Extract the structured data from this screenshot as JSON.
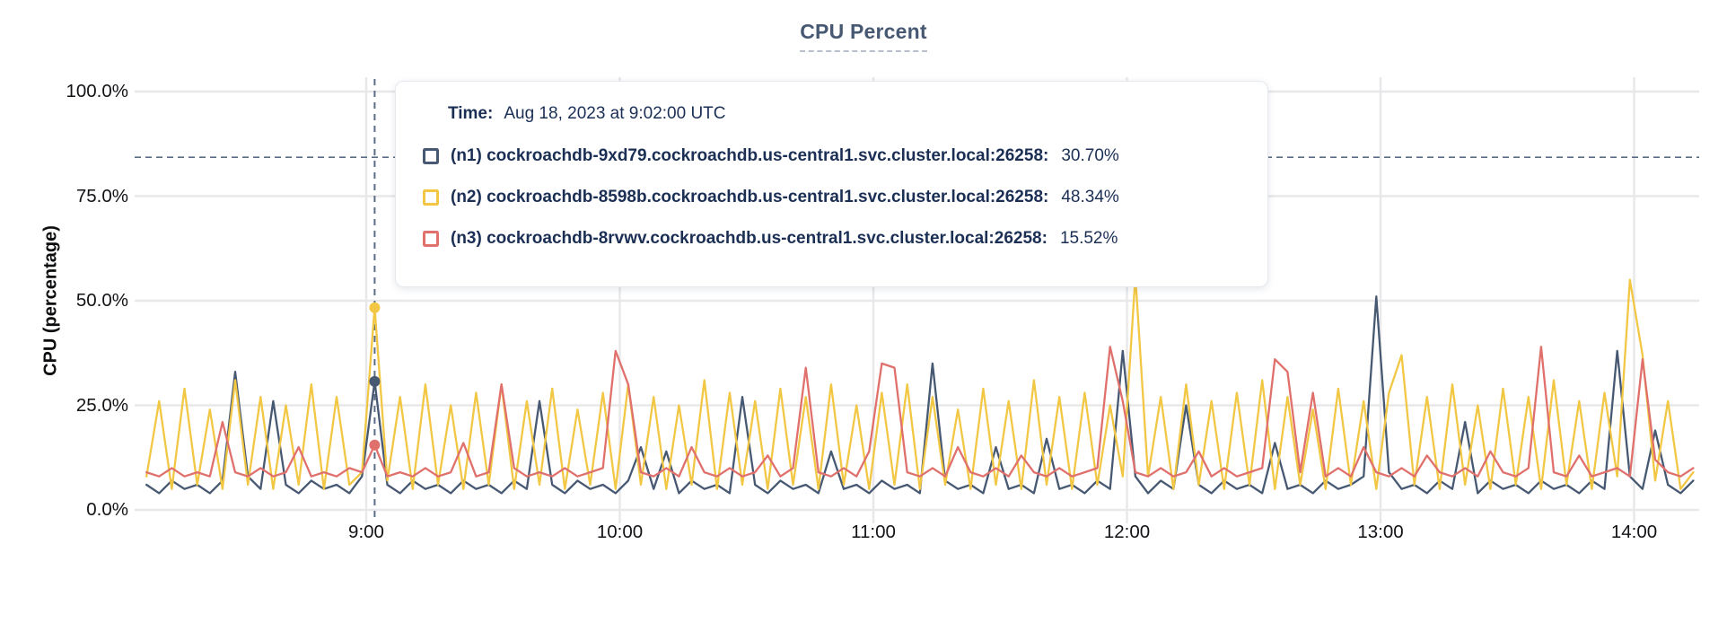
{
  "colors": {
    "accent": "#475872",
    "grid": "#e8e8ea",
    "dashed_guides": "#5b6d84",
    "axis_text": "#121316",
    "tooltip_text": "#1b2f55"
  },
  "tooltip": {
    "time_label": "Time:",
    "time_value": "Aug 18, 2023 at 9:02:00 UTC",
    "rows": [
      {
        "label": "(n1) cockroachdb-9xd79.cockroachdb.us-central1.svc.cluster.local:26258:",
        "value": "30.70%",
        "color": "#475872"
      },
      {
        "label": "(n2) cockroachdb-8598b.cockroachdb.us-central1.svc.cluster.local:26258:",
        "value": "48.34%",
        "color": "#f2c744"
      },
      {
        "label": "(n3) cockroachdb-8rvwv.cockroachdb.us-central1.svc.cluster.local:26258:",
        "value": "15.52%",
        "color": "#e0706c"
      }
    ]
  },
  "chart_data": {
    "type": "line",
    "title": "CPU Percent",
    "xlabel": "",
    "ylabel": "CPU (percentage)",
    "ylim": [
      0,
      100
    ],
    "grid": true,
    "legend_position": "tooltip-overlay",
    "y_ticks": [
      {
        "value": 0,
        "label": "0.0%"
      },
      {
        "value": 25,
        "label": "25.0%"
      },
      {
        "value": 50,
        "label": "50.0%"
      },
      {
        "value": 75,
        "label": "75.0%"
      },
      {
        "value": 100,
        "label": "100.0%"
      }
    ],
    "x_ticks": [
      {
        "minutes": 540,
        "label": "9:00"
      },
      {
        "minutes": 600,
        "label": "10:00"
      },
      {
        "minutes": 660,
        "label": "11:00"
      },
      {
        "minutes": 720,
        "label": "12:00"
      },
      {
        "minutes": 780,
        "label": "13:00"
      },
      {
        "minutes": 840,
        "label": "14:00"
      }
    ],
    "x_start_minutes": 488,
    "x_step_minutes": 3,
    "threshold_value": 84.3,
    "hover": {
      "minutes": 542,
      "time_text": "Aug 18, 2023 at 9:02:00 UTC",
      "points": [
        {
          "series": "n1",
          "value": 30.7
        },
        {
          "series": "n2",
          "value": 48.34
        },
        {
          "series": "n3",
          "value": 15.52
        }
      ]
    },
    "series": [
      {
        "id": "n1",
        "name": "(n1) cockroachdb-9xd79.cockroachdb.us-central1.svc.cluster.local:26258",
        "color": "#475872",
        "values": [
          6,
          4,
          7,
          5,
          6,
          4,
          7,
          33,
          8,
          5,
          26,
          6,
          4,
          7,
          5,
          6,
          4,
          8,
          30.7,
          6,
          4,
          7,
          5,
          6,
          4,
          7,
          5,
          6,
          4,
          7,
          5,
          26,
          6,
          4,
          7,
          5,
          6,
          4,
          7,
          15,
          5,
          14,
          4,
          7,
          5,
          6,
          4,
          27,
          6,
          4,
          7,
          5,
          6,
          4,
          14,
          5,
          6,
          4,
          7,
          5,
          6,
          4,
          35,
          7,
          5,
          6,
          4,
          15,
          5,
          6,
          4,
          17,
          5,
          6,
          4,
          7,
          5,
          38,
          8,
          4,
          7,
          5,
          25,
          6,
          4,
          7,
          5,
          6,
          4,
          16,
          5,
          6,
          4,
          7,
          5,
          6,
          8,
          51,
          9,
          5,
          6,
          4,
          7,
          5,
          21,
          4,
          7,
          5,
          6,
          4,
          7,
          5,
          6,
          4,
          7,
          5,
          38,
          8,
          5,
          19,
          6,
          4,
          7
        ]
      },
      {
        "id": "n2",
        "name": "(n2) cockroachdb-8598b.cockroachdb.us-central1.svc.cluster.local:26258",
        "color": "#f2c744",
        "values": [
          8,
          26,
          5,
          29,
          6,
          24,
          5,
          31,
          6,
          27,
          5,
          25,
          6,
          30,
          5,
          27,
          6,
          9,
          48.34,
          7,
          27,
          5,
          30,
          6,
          25,
          5,
          28,
          6,
          30,
          5,
          26,
          6,
          29,
          5,
          24,
          6,
          28,
          5,
          30,
          6,
          27,
          5,
          25,
          6,
          31,
          5,
          28,
          6,
          26,
          5,
          29,
          6,
          27,
          5,
          30,
          6,
          25,
          5,
          28,
          6,
          30,
          5,
          27,
          6,
          24,
          5,
          29,
          6,
          26,
          5,
          31,
          6,
          27,
          5,
          28,
          6,
          25,
          8,
          56,
          8,
          27,
          5,
          30,
          6,
          26,
          5,
          28,
          6,
          31,
          5,
          27,
          6,
          24,
          5,
          29,
          6,
          26,
          5,
          28,
          37,
          6,
          27,
          5,
          30,
          6,
          25,
          5,
          29,
          6,
          27,
          5,
          31,
          6,
          26,
          5,
          28,
          8,
          55,
          37,
          7,
          26,
          5,
          9
        ]
      },
      {
        "id": "n3",
        "name": "(n3) cockroachdb-8rvwv.cockroachdb.us-central1.svc.cluster.local:26258",
        "color": "#e0706c",
        "values": [
          9,
          8,
          10,
          8,
          9,
          8,
          21,
          9,
          8,
          10,
          8,
          9,
          15,
          8,
          9,
          8,
          10,
          9,
          15.52,
          8,
          9,
          8,
          10,
          8,
          9,
          16,
          8,
          9,
          30,
          10,
          8,
          9,
          8,
          10,
          8,
          9,
          10,
          38,
          30,
          9,
          8,
          10,
          8,
          15,
          9,
          8,
          10,
          8,
          9,
          13,
          8,
          10,
          34,
          9,
          8,
          10,
          8,
          14,
          35,
          34,
          9,
          8,
          10,
          8,
          15,
          9,
          8,
          10,
          8,
          13,
          9,
          8,
          10,
          8,
          9,
          10,
          39,
          26,
          9,
          8,
          10,
          8,
          9,
          14,
          8,
          10,
          8,
          9,
          10,
          36,
          33,
          9,
          28,
          8,
          10,
          8,
          15,
          9,
          8,
          10,
          8,
          13,
          9,
          8,
          10,
          8,
          14,
          9,
          8,
          10,
          39,
          9,
          8,
          13,
          8,
          9,
          10,
          8,
          36,
          12,
          9,
          8,
          10
        ]
      }
    ]
  }
}
